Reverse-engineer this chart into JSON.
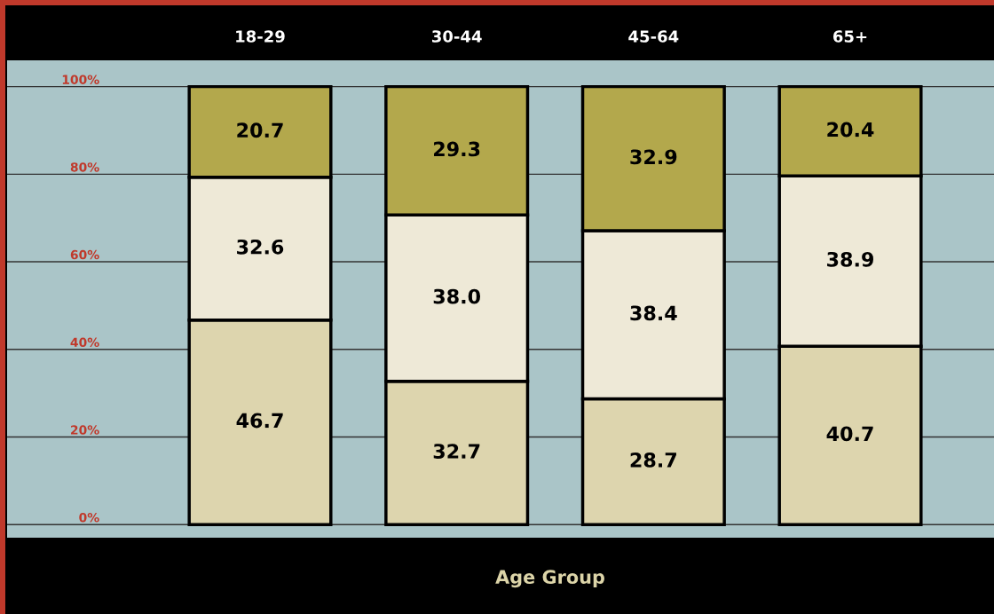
{
  "chart_data": {
    "type": "bar",
    "stacked": true,
    "xlabel": "Age Group",
    "categories": [
      "18-29",
      "30-44",
      "45-64",
      "65+"
    ],
    "series": [
      {
        "color": "#ddd5ae",
        "values": [
          46.7,
          32.7,
          28.7,
          40.7
        ],
        "value_labels": [
          "46.7",
          "32.7",
          "28.7",
          "40.7"
        ]
      },
      {
        "color": "#eee9d7",
        "values": [
          32.6,
          38.0,
          38.4,
          38.9
        ],
        "value_labels": [
          "32.6",
          "38.0",
          "38.4",
          "38.9"
        ]
      },
      {
        "color": "#b3a84c",
        "values": [
          20.7,
          29.3,
          32.9,
          20.4
        ],
        "value_labels": [
          "20.7",
          "29.3",
          "32.9",
          "20.4"
        ]
      }
    ],
    "ylim": [
      -3,
      106
    ],
    "yticks": [
      {
        "value": 0,
        "label": "0%"
      },
      {
        "value": 20,
        "label": "20%"
      },
      {
        "value": 40,
        "label": "40%"
      },
      {
        "value": 60,
        "label": "60%"
      },
      {
        "value": 80,
        "label": "80%"
      },
      {
        "value": 100,
        "label": "100%"
      }
    ],
    "grid": "y",
    "legend": false
  }
}
